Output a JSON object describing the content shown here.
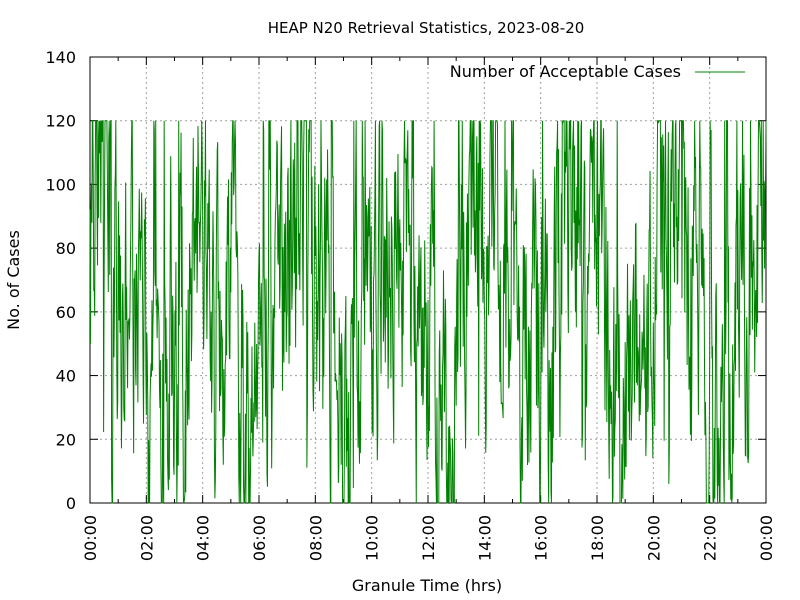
{
  "chart_data": {
    "type": "line",
    "title": "HEAP N20 Retrieval Statistics, 2023-08-20",
    "xlabel": "Granule Time (hrs)",
    "ylabel": "No. of Cases",
    "xlim": [
      0,
      24
    ],
    "ylim": [
      0,
      140
    ],
    "x_tick_labels": [
      "00:00",
      "02:00",
      "04:00",
      "06:00",
      "08:00",
      "10:00",
      "12:00",
      "14:00",
      "16:00",
      "18:00",
      "20:00",
      "22:00",
      "00:00"
    ],
    "y_tick_labels": [
      "0",
      "20",
      "40",
      "60",
      "80",
      "100",
      "120",
      "140"
    ],
    "grid": true,
    "legend_position": "top-right",
    "series": [
      {
        "name": "Number of Acceptable Cases",
        "color": "#008000",
        "sampling": "one value per minute, 00:00 to 24:00 (1441 values)",
        "y_max": 120,
        "y_min": 0,
        "typical_range": [
          30,
          120
        ],
        "note": "Values oscillate rapidly; individual minute values are not legible. Series rendered by a seeded pseudo-random sequence bounded by 0..120 with the observed envelope."
      }
    ]
  }
}
